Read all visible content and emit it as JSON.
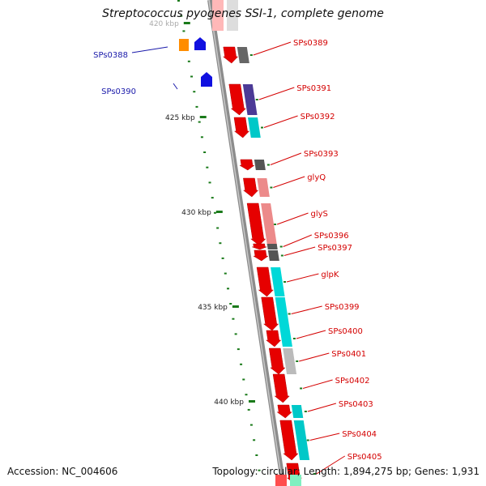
{
  "title": "Streptococcus pyogenes SSI-1, complete genome",
  "accession": "Accession: NC_004606",
  "summary": "Topology: circular; Length: 1,894,275 bp; Genes: 1,931",
  "colors": {
    "axis": "#8c8c8c",
    "forward_label": "#d40000",
    "reverse_label": "#1a1aaa",
    "gene_red": "#e60000",
    "gene_blue": "#1010e0",
    "gene_orange": "#ff8c00",
    "tick": "#1a7a1a"
  },
  "scale": {
    "labels": [
      {
        "text": "420 kbp"
      },
      {
        "text": "425 kbp"
      },
      {
        "text": "430 kbp"
      },
      {
        "text": "435 kbp"
      },
      {
        "text": "440 kbp"
      }
    ]
  },
  "forward_genes": [
    {
      "label": "SPs0389",
      "cog_color": "#666666"
    },
    {
      "label": "SPs0391",
      "cog_color": "#4b3a96"
    },
    {
      "label": "SPs0392",
      "cog_color": "#00c8c8"
    },
    {
      "label": "SPs0393",
      "cog_color": "#555555"
    },
    {
      "label": "glyQ",
      "cog_color": "#ec8a8a"
    },
    {
      "label": "glyS",
      "cog_color": "#ec8a8a"
    },
    {
      "label": "SPs0396",
      "cog_color": "#555555"
    },
    {
      "label": "SPs0397",
      "cog_color": "#555555"
    },
    {
      "label": "glpK",
      "cog_color": "#00d8d8"
    },
    {
      "label": "SPs0399",
      "cog_color": "#00d8d8"
    },
    {
      "label": "SPs0400",
      "cog_color": "#00d8d8"
    },
    {
      "label": "SPs0401",
      "cog_color": "#bbbbbb"
    },
    {
      "label": "SPs0402",
      "cog_color": ""
    },
    {
      "label": "SPs0403",
      "cog_color": "#00c8c8"
    },
    {
      "label": "SPs0404",
      "cog_color": "#00c8c8"
    },
    {
      "label": "SPs0405",
      "cog_color": ""
    }
  ],
  "reverse_genes": [
    {
      "label": "SPs0388"
    },
    {
      "label": "SPs0390"
    }
  ]
}
